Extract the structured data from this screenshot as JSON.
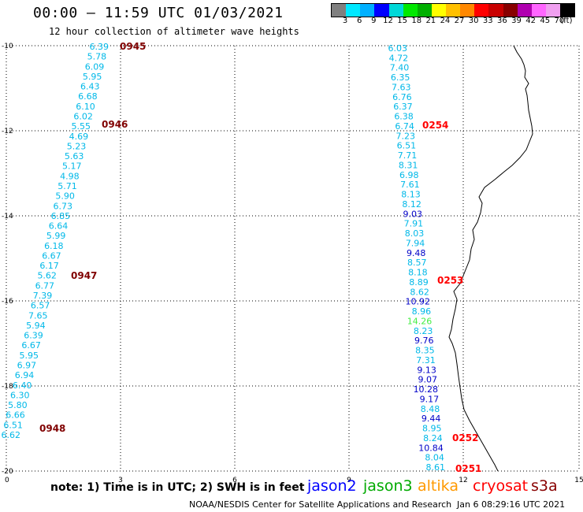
{
  "header": {
    "title": "00:00 – 11:59 UTC 01/03/2021",
    "subtitle": "12 hour collection of altimeter wave heights"
  },
  "colorbar": {
    "colors": [
      "#808080",
      "#00e8ff",
      "#00b0ff",
      "#0000ff",
      "#00d8d8",
      "#00e800",
      "#00b000",
      "#ffff00",
      "#ffc000",
      "#ff8800",
      "#ff0000",
      "#c80000",
      "#880000",
      "#b000b0",
      "#ff66ff",
      "#f0a0f0",
      "#000000"
    ],
    "labels": [
      "3",
      "6",
      "9",
      "12",
      "15",
      "18",
      "21",
      "24",
      "27",
      "30",
      "33",
      "36",
      "39",
      "42",
      "45",
      "70",
      "(ft)"
    ]
  },
  "map": {
    "x_ticks": [
      "0",
      "3",
      "6",
      "9",
      "12",
      "15"
    ],
    "y_ticks": [
      "-10",
      "-12",
      "-14",
      "-16",
      "-18",
      "-20"
    ]
  },
  "series_colors": {
    "lt": "#00b8e8",
    "md": "#00a0ff",
    "bl": "#0000c8",
    "gr": "#44ee44",
    "dk": "#800000",
    "rd": "#ff0000"
  },
  "tracks": [
    {
      "id": "west",
      "values": [
        [
          "6.39",
          "lt"
        ],
        [
          "5.78",
          "lt"
        ],
        [
          "6.09",
          "lt"
        ],
        [
          "5.95",
          "lt"
        ],
        [
          "6.43",
          "lt"
        ],
        [
          "6.68",
          "lt"
        ],
        [
          "6.10",
          "lt"
        ],
        [
          "6.02",
          "lt"
        ],
        [
          "5.55",
          "lt"
        ],
        [
          "4.69",
          "lt"
        ],
        [
          "5.23",
          "lt"
        ],
        [
          "5.63",
          "lt"
        ],
        [
          "5.17",
          "lt"
        ],
        [
          "4.98",
          "lt"
        ],
        [
          "5.71",
          "lt"
        ],
        [
          "5.90",
          "lt"
        ],
        [
          "6.73",
          "lt"
        ],
        [
          "6.85",
          "lt"
        ],
        [
          "6.64",
          "lt"
        ],
        [
          "5.99",
          "lt"
        ],
        [
          "6.18",
          "lt"
        ],
        [
          "6.67",
          "lt"
        ],
        [
          "6.17",
          "lt"
        ],
        [
          "5.62",
          "lt"
        ],
        [
          "6.77",
          "lt"
        ],
        [
          "7.39",
          "lt"
        ],
        [
          "6.57",
          "lt"
        ],
        [
          "7.65",
          "lt"
        ],
        [
          "5.94",
          "lt"
        ],
        [
          "6.39",
          "lt"
        ],
        [
          "6.67",
          "lt"
        ],
        [
          "5.95",
          "lt"
        ],
        [
          "6.97",
          "lt"
        ],
        [
          "6.94",
          "lt"
        ],
        [
          "6.40",
          "lt"
        ],
        [
          "6.30",
          "lt"
        ],
        [
          "5.80",
          "lt"
        ],
        [
          "6.66",
          "lt"
        ],
        [
          "6.51",
          "lt"
        ],
        [
          "6.62",
          "lt"
        ]
      ],
      "times": [
        "0945",
        "0946",
        "0947",
        "0948"
      ]
    },
    {
      "id": "east",
      "values": [
        [
          "6.03",
          "lt"
        ],
        [
          "4.72",
          "lt"
        ],
        [
          "7.40",
          "lt"
        ],
        [
          "6.35",
          "lt"
        ],
        [
          "7.63",
          "lt"
        ],
        [
          "6.76",
          "lt"
        ],
        [
          "6.37",
          "lt"
        ],
        [
          "6.38",
          "lt"
        ],
        [
          "6.74",
          "lt"
        ],
        [
          "7.23",
          "lt"
        ],
        [
          "6.51",
          "lt"
        ],
        [
          "7.71",
          "lt"
        ],
        [
          "8.31",
          "lt"
        ],
        [
          "6.98",
          "lt"
        ],
        [
          "7.61",
          "lt"
        ],
        [
          "8.13",
          "lt"
        ],
        [
          "8.12",
          "lt"
        ],
        [
          "9.03",
          "bl"
        ],
        [
          "7.91",
          "lt"
        ],
        [
          "8.03",
          "lt"
        ],
        [
          "7.94",
          "lt"
        ],
        [
          "9.48",
          "bl"
        ],
        [
          "8.57",
          "lt"
        ],
        [
          "8.18",
          "lt"
        ],
        [
          "8.89",
          "lt"
        ],
        [
          "8.62",
          "lt"
        ],
        [
          "10.92",
          "bl"
        ],
        [
          "8.96",
          "lt"
        ],
        [
          "14.26",
          "gr"
        ],
        [
          "8.23",
          "lt"
        ],
        [
          "9.76",
          "bl"
        ],
        [
          "8.35",
          "lt"
        ],
        [
          "7.31",
          "lt"
        ],
        [
          "9.13",
          "bl"
        ],
        [
          "9.07",
          "bl"
        ],
        [
          "10.28",
          "bl"
        ],
        [
          "9.17",
          "bl"
        ],
        [
          "8.48",
          "lt"
        ],
        [
          "9.44",
          "bl"
        ],
        [
          "8.95",
          "lt"
        ],
        [
          "8.24",
          "lt"
        ],
        [
          "10.84",
          "bl"
        ],
        [
          "8.04",
          "lt"
        ],
        [
          "8.61",
          "lt"
        ]
      ],
      "times": [
        "0254",
        "0253",
        "0252",
        "0251"
      ]
    }
  ],
  "footer": {
    "note": "note: 1) Time is in UTC; 2) SWH is in feet",
    "satellites": [
      {
        "name": "jason2",
        "color": "#0000ff"
      },
      {
        "name": "jason3",
        "color": "#00aa00"
      },
      {
        "name": "altika",
        "color": "#ff9900"
      },
      {
        "name": "cryosat",
        "color": "#ff0000"
      },
      {
        "name": "s3a",
        "color": "#880000"
      }
    ],
    "credit": "NOAA/NESDIS Center for Satellite Applications and Research",
    "timestamp": "Jan  6 08:29:16 UTC 2021"
  }
}
